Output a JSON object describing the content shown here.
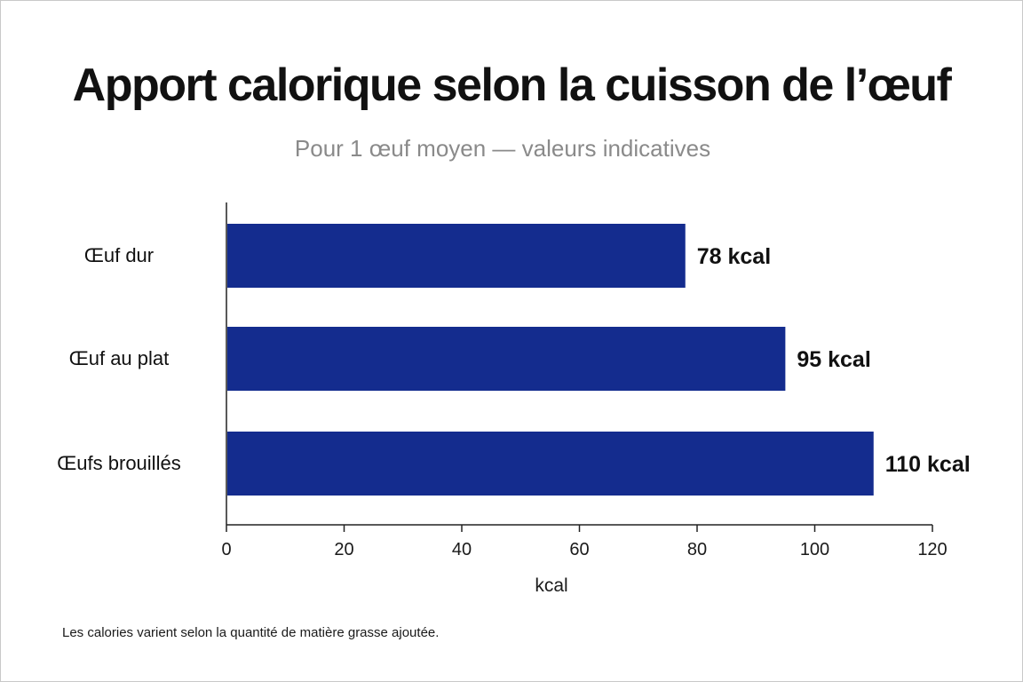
{
  "chart_data": {
    "type": "bar",
    "orientation": "horizontal",
    "title": "Apport calorique selon la cuisson de l’œuf",
    "subtitle": "Pour 1 œuf moyen — valeurs indicatives",
    "categories": [
      "Œuf dur",
      "Œuf au plat",
      "Œufs brouillés"
    ],
    "values": [
      78,
      95,
      110
    ],
    "value_labels": [
      "78 kcal",
      "95 kcal",
      "110 kcal"
    ],
    "xlabel": "kcal",
    "ylabel": "",
    "xlim": [
      0,
      120
    ],
    "xticks": [
      0,
      20,
      40,
      60,
      80,
      100,
      120
    ],
    "grid": false,
    "bar_color": "#142c8e",
    "footnote": "Les calories varient selon la quantité de matière grasse ajoutée."
  }
}
